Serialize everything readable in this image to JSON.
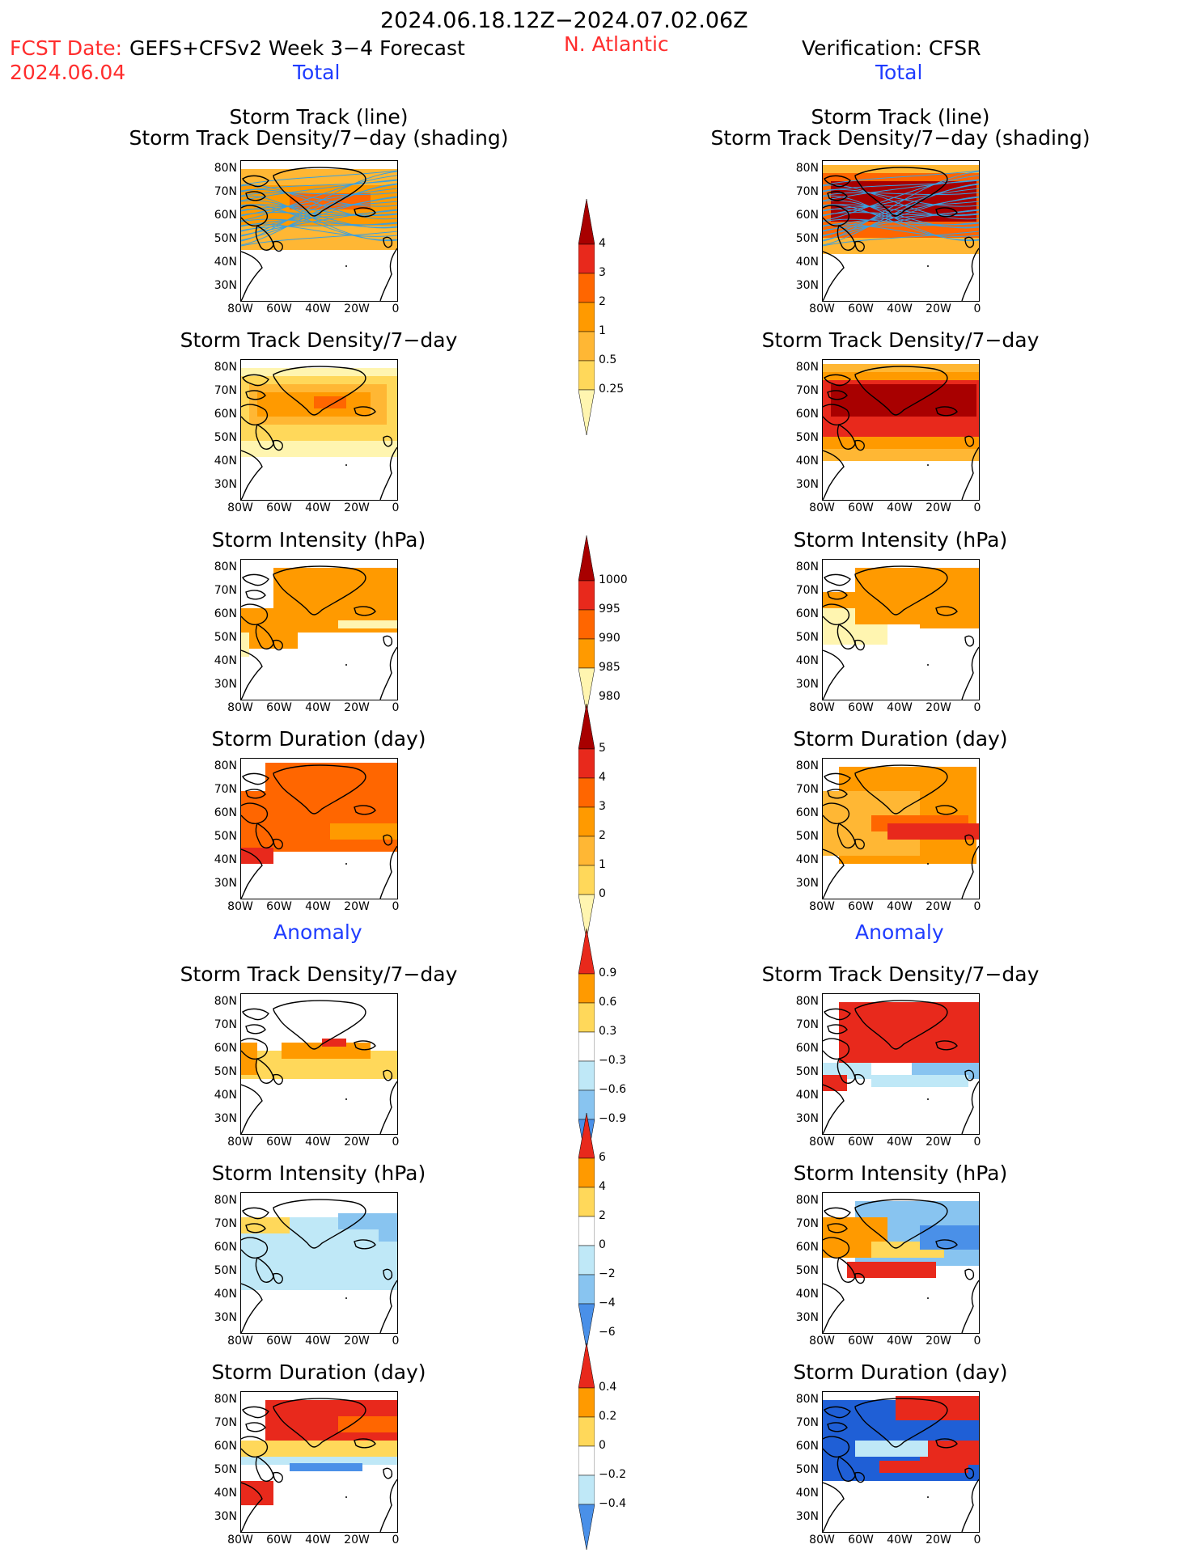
{
  "header": {
    "date_range": "2024.06.18.12Z−2024.07.02.06Z",
    "fcst_prefix": "FCST Date:",
    "fcst_date": "2024.06.04",
    "model": "GEFS+CFSv2 Week 3−4 Forecast",
    "region": "N. Atlantic",
    "verification": "Verification: CFSR",
    "total_left": "Total",
    "total_right": "Total",
    "anomaly_left": "Anomaly",
    "anomaly_right": "Anomaly"
  },
  "panel_titles": {
    "track_line": "Storm Track (line)",
    "track_shading": "Storm Track Density/7−day (shading)",
    "density": "Storm Track Density/7−day",
    "intensity": "Storm Intensity (hPa)",
    "duration": "Storm Duration (day)"
  },
  "axes": {
    "lat_labels": [
      "80N",
      "70N",
      "60N",
      "50N",
      "40N",
      "30N"
    ],
    "lon_labels": [
      "80W",
      "60W",
      "40W",
      "20W",
      "0"
    ]
  },
  "colorbars": {
    "density_total": [
      "4",
      "3",
      "2",
      "1",
      "0.5",
      "0.25"
    ],
    "intensity_total": [
      "1000",
      "995",
      "990",
      "985",
      "980"
    ],
    "duration_total": [
      "5",
      "4",
      "3",
      "2",
      "1",
      "0"
    ],
    "density_anomaly": [
      "0.9",
      "0.6",
      "0.3",
      "−0.3",
      "−0.6",
      "−0.9"
    ],
    "intensity_anomaly": [
      "6",
      "4",
      "2",
      "0",
      "−2",
      "−4",
      "−6"
    ],
    "duration_anomaly": [
      "0.4",
      "0.2",
      "0",
      "−0.2",
      "−0.4"
    ]
  },
  "colors": {
    "yellow_light": "#fff5b0",
    "yellow": "#ffd85a",
    "orange_light": "#ffb734",
    "orange": "#ff9a00",
    "orange_dark": "#ff6600",
    "red": "#e8291c",
    "dark_red": "#a80000",
    "blue_light": "#bfe8f7",
    "blue": "#88c4f0",
    "blue_mid": "#4a90e8",
    "blue_dark": "#1f5fd6",
    "track_line": "#3aa0e0"
  }
}
